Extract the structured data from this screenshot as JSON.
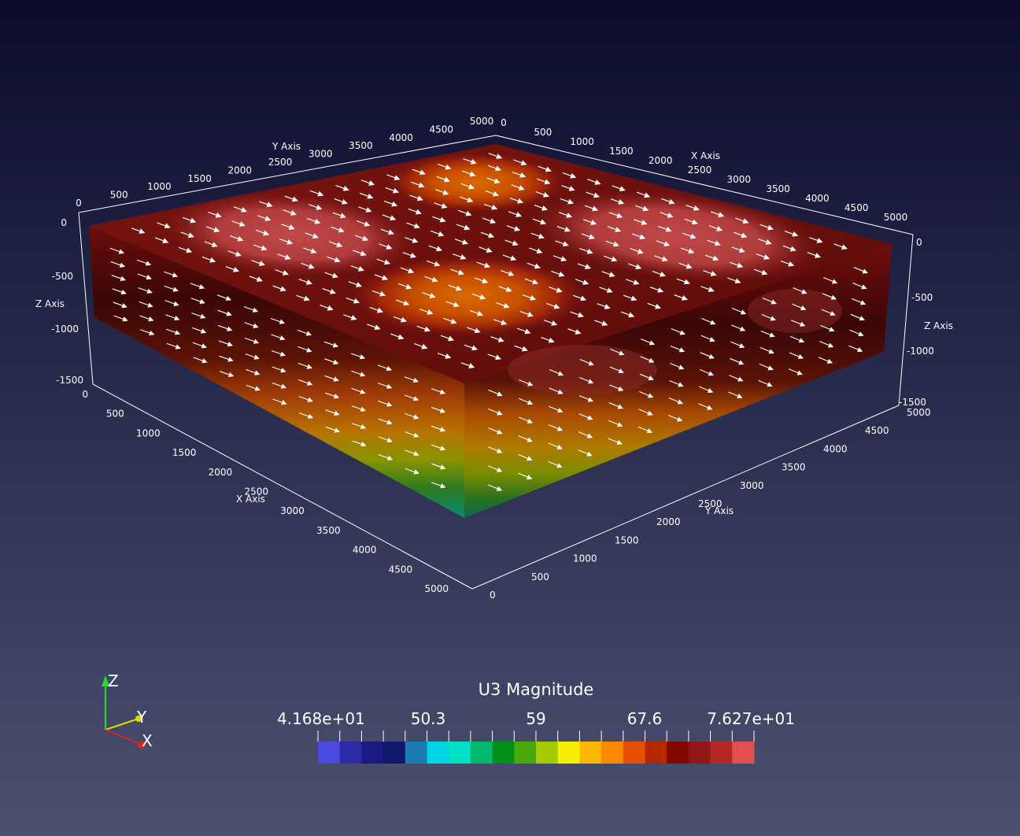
{
  "scene": {
    "field_name": "U3 Magnitude",
    "range": [
      41.68,
      76.27
    ],
    "colorbar": {
      "title": "U3 Magnitude",
      "labels": [
        "4.168e+01",
        "50.3",
        "59",
        "67.6",
        "7.627e+01"
      ],
      "colors": [
        "#4a4adf",
        "#2c2ca8",
        "#1c1a82",
        "#101a6a",
        "#1a7ab4",
        "#00d6e6",
        "#00e0c4",
        "#00b870",
        "#009018",
        "#48a80c",
        "#a4cc00",
        "#f4f000",
        "#fcb800",
        "#fc8800",
        "#e85000",
        "#b82800",
        "#800800",
        "#901818",
        "#b42828",
        "#e05050"
      ]
    },
    "axes": {
      "x_axis_title": "X Axis",
      "y_axis_title": "Y Axis",
      "z_axis_title": "Z Axis",
      "xy_ticks": [
        "0",
        "500",
        "1000",
        "1500",
        "2000",
        "2500",
        "3000",
        "3500",
        "4000",
        "4500",
        "5000"
      ],
      "z_ticks": [
        "0",
        "-500",
        "-1000",
        "-1500"
      ]
    },
    "orientation": {
      "z_label": "Z",
      "y_label": "Y",
      "x_label": "X",
      "z_color": "#22dd22",
      "y_color": "#dddd00",
      "x_color": "#dd2222"
    }
  }
}
